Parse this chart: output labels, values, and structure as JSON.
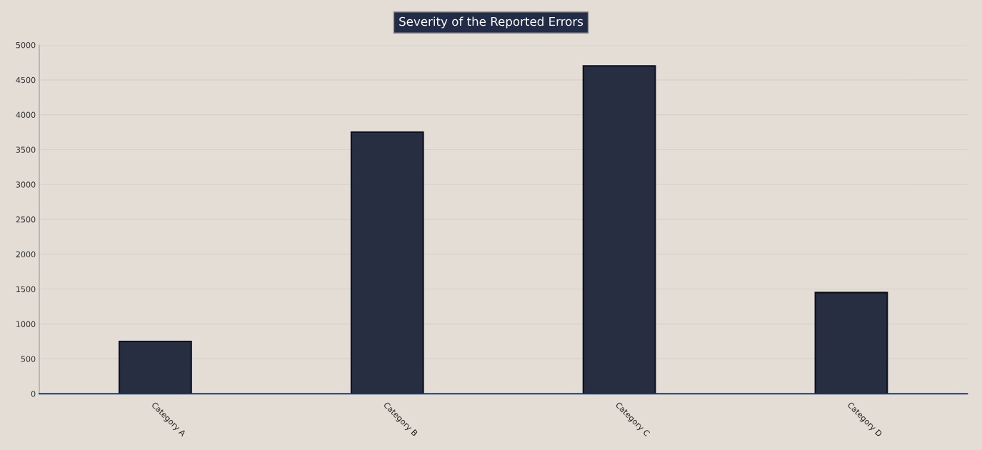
{
  "chart_data": {
    "type": "bar",
    "title": "Severity of the Reported Errors",
    "categories": [
      "Category A",
      "Category B",
      "Category C",
      "Category D"
    ],
    "values": [
      750,
      3750,
      4700,
      1450
    ],
    "color": "#222c47",
    "ylim": [
      0,
      5000
    ],
    "yticks": [
      0,
      500,
      1000,
      1500,
      2000,
      2500,
      3000,
      3500,
      4000,
      4500,
      5000
    ],
    "grid": "y"
  }
}
